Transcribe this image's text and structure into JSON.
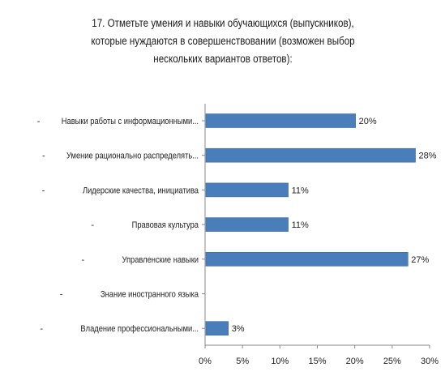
{
  "chart_data": {
    "type": "bar",
    "orientation": "horizontal",
    "title_lines": [
      "17. Отметьте умения и навыки обучающихся (выпускников),",
      "которые нуждаются в совершенствовании (возможен выбор",
      "нескольких вариантов ответов):"
    ],
    "categories": [
      "Навыки работы с информационными...",
      "Умение рационально распределять...",
      "Лидерские качества, инициатива",
      "Правовая культура",
      "Управленские навыки",
      "Знание иностранного языка",
      "Владение профессиональными..."
    ],
    "category_prefix": "-",
    "values": [
      20,
      28,
      11,
      11,
      27,
      0,
      3
    ],
    "value_labels": [
      "20%",
      "28%",
      "11%",
      "11%",
      "27%",
      "",
      "3%"
    ],
    "xlim": [
      0,
      30
    ],
    "xticks": [
      "0%",
      "5%",
      "10%",
      "15%",
      "20%",
      "25%",
      "30%"
    ],
    "bar_color": "#4a7ebb",
    "legend": "none",
    "grid": false
  }
}
